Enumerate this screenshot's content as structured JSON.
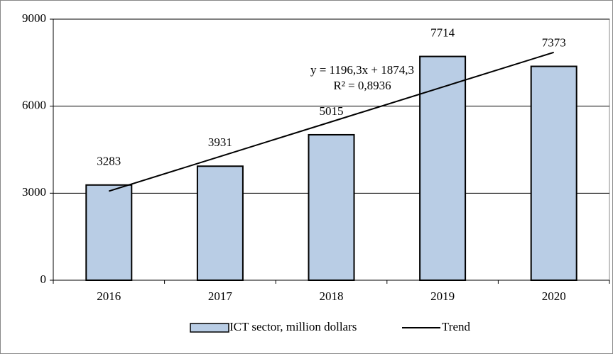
{
  "chart_data": {
    "type": "bar",
    "categories": [
      "2016",
      "2017",
      "2018",
      "2019",
      "2020"
    ],
    "series": [
      {
        "name": "ICT sector, million dollars",
        "color": "#b9cde5",
        "values": [
          3283,
          3931,
          5015,
          7714,
          7373
        ]
      },
      {
        "name": "Trend",
        "type": "line",
        "color": "#000000",
        "values": [
          3070.6,
          4266.9,
          5463.2,
          6659.5,
          7855.8
        ]
      }
    ],
    "annotations": [
      "y = 1196,3x + 1874,3",
      "R² = 0,8936"
    ],
    "ylim": [
      0,
      9000
    ],
    "yticks": [
      0,
      3000,
      6000,
      9000
    ],
    "grid": true,
    "legend": "bottom"
  }
}
